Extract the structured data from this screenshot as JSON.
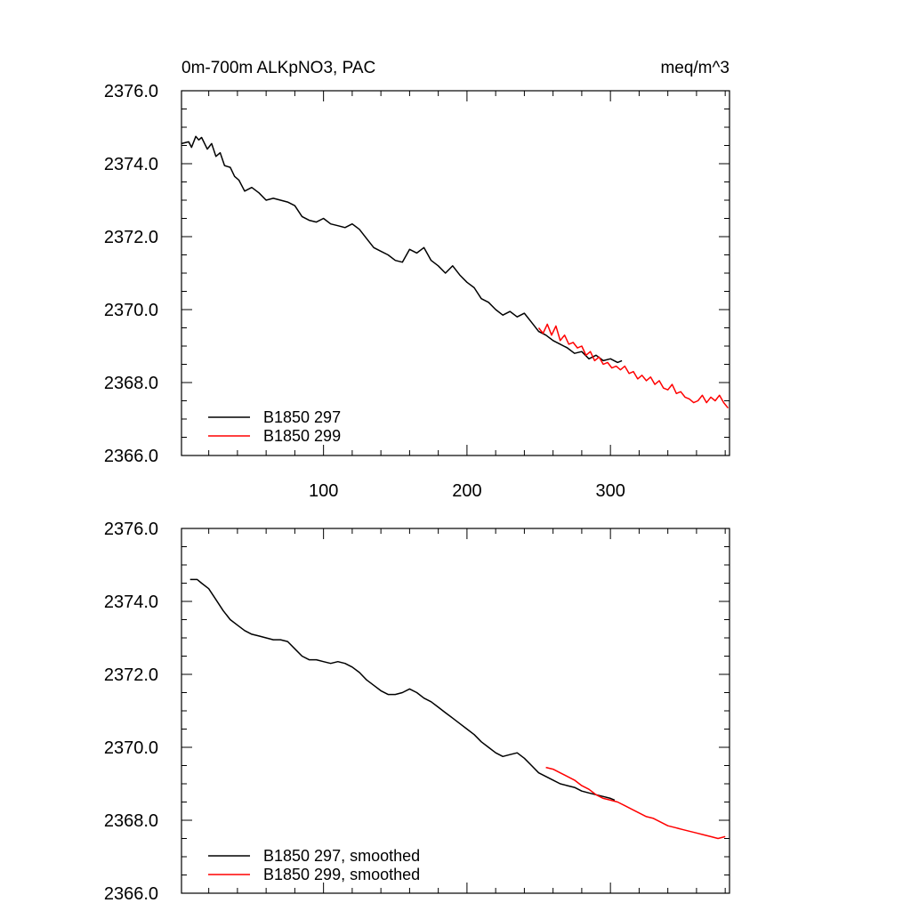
{
  "chart_data": [
    {
      "type": "line",
      "title": "0m-700m ALKpNO3, PAC",
      "units": "meq/m^3",
      "xlim": [
        1,
        383
      ],
      "ylim": [
        2366.0,
        2376.0
      ],
      "x_ticks": [
        100,
        200,
        300
      ],
      "x_tick_labels": [
        "100",
        "200",
        "300"
      ],
      "y_ticks": [
        2366,
        2368,
        2370,
        2372,
        2374,
        2376
      ],
      "y_tick_labels": [
        "2366.0",
        "2368.0",
        "2370.0",
        "2372.0",
        "2374.0",
        "2376.0"
      ],
      "legend_position": "bottom-left",
      "series": [
        {
          "name": "B1850 297",
          "color": "#000000",
          "x": [
            1,
            6,
            8,
            11,
            13,
            15,
            19,
            22,
            25,
            28,
            31,
            35,
            38,
            41,
            45,
            50,
            55,
            60,
            65,
            70,
            75,
            80,
            85,
            90,
            95,
            100,
            105,
            110,
            115,
            120,
            125,
            130,
            135,
            140,
            145,
            150,
            155,
            160,
            165,
            170,
            175,
            180,
            185,
            190,
            195,
            200,
            205,
            210,
            215,
            220,
            225,
            230,
            235,
            240,
            245,
            250,
            255,
            260,
            265,
            270,
            275,
            280,
            285,
            290,
            295,
            300,
            305,
            308
          ],
          "y": [
            2374.55,
            2374.6,
            2374.45,
            2374.75,
            2374.65,
            2374.72,
            2374.4,
            2374.55,
            2374.2,
            2374.3,
            2373.95,
            2373.9,
            2373.65,
            2373.55,
            2373.25,
            2373.35,
            2373.2,
            2373.0,
            2373.05,
            2373.0,
            2372.95,
            2372.85,
            2372.55,
            2372.45,
            2372.4,
            2372.5,
            2372.35,
            2372.3,
            2372.25,
            2372.35,
            2372.2,
            2371.95,
            2371.7,
            2371.6,
            2371.5,
            2371.35,
            2371.3,
            2371.65,
            2371.55,
            2371.7,
            2371.35,
            2371.2,
            2371.0,
            2371.2,
            2370.95,
            2370.75,
            2370.6,
            2370.3,
            2370.2,
            2370.0,
            2369.85,
            2369.95,
            2369.8,
            2369.9,
            2369.65,
            2369.4,
            2369.3,
            2369.15,
            2369.05,
            2368.95,
            2368.8,
            2368.85,
            2368.65,
            2368.75,
            2368.6,
            2368.65,
            2368.55,
            2368.6
          ]
        },
        {
          "name": "B1850 299",
          "color": "#ff0000",
          "x": [
            250,
            253,
            256,
            259,
            262,
            265,
            268,
            271,
            274,
            277,
            280,
            283,
            286,
            289,
            292,
            295,
            298,
            301,
            304,
            307,
            310,
            313,
            316,
            319,
            322,
            325,
            328,
            331,
            334,
            337,
            340,
            343,
            346,
            349,
            352,
            355,
            358,
            361,
            364,
            367,
            370,
            373,
            376,
            379,
            382
          ],
          "y": [
            2369.5,
            2369.35,
            2369.6,
            2369.3,
            2369.55,
            2369.15,
            2369.3,
            2369.05,
            2369.1,
            2368.95,
            2369.0,
            2368.75,
            2368.85,
            2368.6,
            2368.7,
            2368.5,
            2368.55,
            2368.4,
            2368.45,
            2368.35,
            2368.45,
            2368.25,
            2368.3,
            2368.1,
            2368.2,
            2368.05,
            2368.15,
            2367.95,
            2368.05,
            2367.85,
            2367.8,
            2367.95,
            2367.7,
            2367.75,
            2367.6,
            2367.55,
            2367.45,
            2367.5,
            2367.65,
            2367.45,
            2367.6,
            2367.5,
            2367.65,
            2367.45,
            2367.3
          ]
        }
      ]
    },
    {
      "type": "line",
      "xlim": [
        1,
        383
      ],
      "ylim": [
        2366.0,
        2376.0
      ],
      "x_ticks": [
        100,
        200,
        300
      ],
      "y_ticks": [
        2366,
        2368,
        2370,
        2372,
        2374,
        2376
      ],
      "y_tick_labels": [
        "2366.0",
        "2368.0",
        "2370.0",
        "2372.0",
        "2374.0",
        "2376.0"
      ],
      "legend_position": "bottom-left",
      "series": [
        {
          "name": "B1850 297, smoothed",
          "color": "#000000",
          "x": [
            7,
            12,
            15,
            20,
            25,
            30,
            35,
            40,
            45,
            50,
            55,
            60,
            65,
            70,
            75,
            80,
            85,
            90,
            95,
            100,
            105,
            110,
            115,
            120,
            125,
            130,
            135,
            140,
            145,
            150,
            155,
            160,
            165,
            170,
            175,
            180,
            185,
            190,
            195,
            200,
            205,
            210,
            215,
            220,
            225,
            230,
            235,
            240,
            245,
            250,
            255,
            260,
            265,
            270,
            275,
            280,
            285,
            290,
            295,
            300,
            303
          ],
          "y": [
            2374.6,
            2374.6,
            2374.5,
            2374.35,
            2374.05,
            2373.75,
            2373.5,
            2373.35,
            2373.2,
            2373.1,
            2373.05,
            2373.0,
            2372.95,
            2372.95,
            2372.9,
            2372.7,
            2372.5,
            2372.4,
            2372.4,
            2372.35,
            2372.3,
            2372.35,
            2372.3,
            2372.2,
            2372.05,
            2371.85,
            2371.7,
            2371.55,
            2371.45,
            2371.45,
            2371.5,
            2371.6,
            2371.5,
            2371.35,
            2371.25,
            2371.1,
            2370.95,
            2370.8,
            2370.65,
            2370.5,
            2370.35,
            2370.15,
            2370.0,
            2369.85,
            2369.75,
            2369.8,
            2369.85,
            2369.7,
            2369.5,
            2369.3,
            2369.2,
            2369.1,
            2369.0,
            2368.95,
            2368.9,
            2368.8,
            2368.75,
            2368.7,
            2368.65,
            2368.6,
            2368.55
          ]
        },
        {
          "name": "B1850 299, smoothed",
          "color": "#ff0000",
          "x": [
            255,
            260,
            265,
            270,
            275,
            280,
            285,
            290,
            295,
            300,
            305,
            310,
            315,
            320,
            325,
            330,
            335,
            340,
            345,
            350,
            355,
            360,
            365,
            370,
            375,
            380
          ],
          "y": [
            2369.45,
            2369.4,
            2369.3,
            2369.2,
            2369.1,
            2368.95,
            2368.85,
            2368.7,
            2368.6,
            2368.55,
            2368.5,
            2368.4,
            2368.3,
            2368.2,
            2368.1,
            2368.05,
            2367.95,
            2367.85,
            2367.8,
            2367.75,
            2367.7,
            2367.65,
            2367.6,
            2367.55,
            2367.5,
            2367.55
          ]
        }
      ]
    }
  ]
}
